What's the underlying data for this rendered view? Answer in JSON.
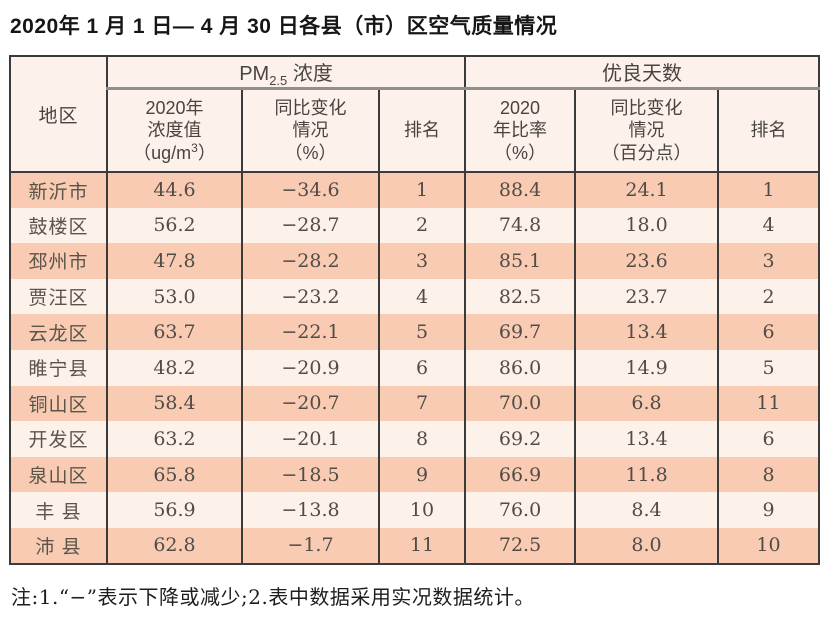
{
  "title": "2020年 1 月 1 日— 4 月 30 日各县（市）区空气质量情况",
  "table": {
    "header": {
      "region": "地区",
      "pm_group": {
        "prefix": "PM",
        "sub": "2.5",
        "suffix": " 浓度"
      },
      "good_group": "优良天数",
      "pm_value": {
        "line1": "2020年",
        "line2": "浓度值",
        "line3_prefix": "（ug/m",
        "line3_sup": "3",
        "line3_suffix": "）"
      },
      "pm_change": {
        "line1": "同比变化",
        "line2": "情况",
        "line3": "（%）"
      },
      "pm_rank": "排名",
      "good_ratio": {
        "line1": "2020",
        "line2": "年比率",
        "line3": "（%）"
      },
      "good_change": {
        "line1": "同比变化",
        "line2": "情况",
        "line3": "（百分点）"
      },
      "good_rank": "排名"
    },
    "rows": [
      {
        "region": "新沂市",
        "pm_value": "44.6",
        "pm_change": "−34.6",
        "pm_rank": "1",
        "good_ratio": "88.4",
        "good_change": "24.1",
        "good_rank": "1"
      },
      {
        "region": "鼓楼区",
        "pm_value": "56.2",
        "pm_change": "−28.7",
        "pm_rank": "2",
        "good_ratio": "74.8",
        "good_change": "18.0",
        "good_rank": "4"
      },
      {
        "region": "邳州市",
        "pm_value": "47.8",
        "pm_change": "−28.2",
        "pm_rank": "3",
        "good_ratio": "85.1",
        "good_change": "23.6",
        "good_rank": "3"
      },
      {
        "region": "贾汪区",
        "pm_value": "53.0",
        "pm_change": "−23.2",
        "pm_rank": "4",
        "good_ratio": "82.5",
        "good_change": "23.7",
        "good_rank": "2"
      },
      {
        "region": "云龙区",
        "pm_value": "63.7",
        "pm_change": "−22.1",
        "pm_rank": "5",
        "good_ratio": "69.7",
        "good_change": "13.4",
        "good_rank": "6"
      },
      {
        "region": "睢宁县",
        "pm_value": "48.2",
        "pm_change": "−20.9",
        "pm_rank": "6",
        "good_ratio": "86.0",
        "good_change": "14.9",
        "good_rank": "5"
      },
      {
        "region": "铜山区",
        "pm_value": "58.4",
        "pm_change": "−20.7",
        "pm_rank": "7",
        "good_ratio": "70.0",
        "good_change": "6.8",
        "good_rank": "11"
      },
      {
        "region": "开发区",
        "pm_value": "63.2",
        "pm_change": "−20.1",
        "pm_rank": "8",
        "good_ratio": "69.2",
        "good_change": "13.4",
        "good_rank": "6"
      },
      {
        "region": "泉山区",
        "pm_value": "65.8",
        "pm_change": "−18.5",
        "pm_rank": "9",
        "good_ratio": "66.9",
        "good_change": "11.8",
        "good_rank": "8"
      },
      {
        "region": "丰 县",
        "pm_value": "56.9",
        "pm_change": "−13.8",
        "pm_rank": "10",
        "good_ratio": "76.0",
        "good_change": "8.4",
        "good_rank": "9"
      },
      {
        "region": "沛 县",
        "pm_value": "62.8",
        "pm_change": "−1.7",
        "pm_rank": "11",
        "good_ratio": "72.5",
        "good_change": "8.0",
        "good_rank": "10"
      }
    ]
  },
  "footnote": "注:1.“−”表示下降或减少;2.表中数据采用实况数据统计。",
  "colors": {
    "row_alt": "#f8cbb2",
    "row_base": "#fdf2ea",
    "header_bg": "#fcf2eb",
    "border": "#3b3b3b",
    "group_divider": "#8f8f8f",
    "text": "#514c47"
  }
}
